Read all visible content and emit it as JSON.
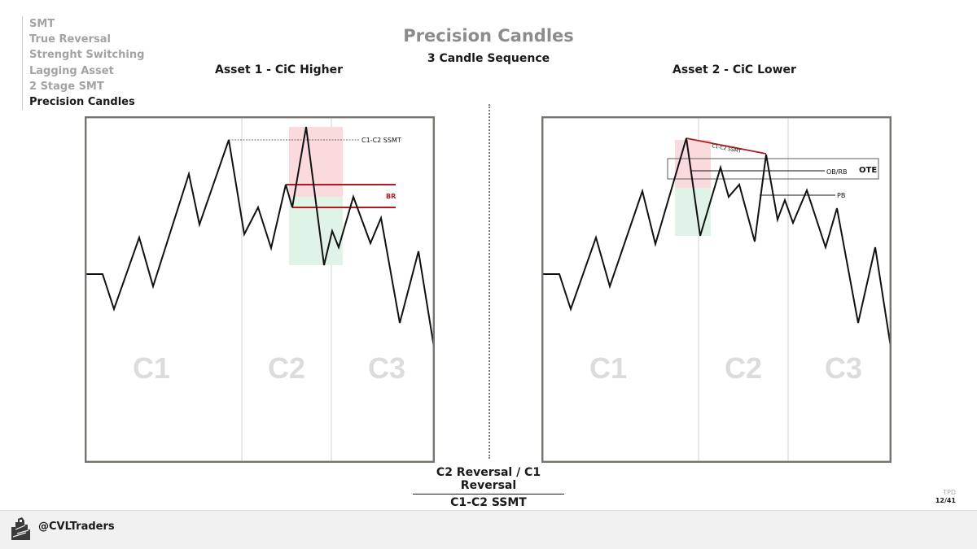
{
  "nav": {
    "items": [
      {
        "label": "SMT",
        "active": false
      },
      {
        "label": "True Reversal",
        "active": false
      },
      {
        "label": "Strenght Switching",
        "active": false
      },
      {
        "label": "Lagging Asset",
        "active": false
      },
      {
        "label": "2 Stage SMT",
        "active": false
      },
      {
        "label": "Precision Candles",
        "active": true
      }
    ]
  },
  "header": {
    "title": "Precision Candles",
    "subtitle": "3 Candle Sequence"
  },
  "assets": [
    {
      "title": "Asset 1 - CiC Higher",
      "candle_labels": [
        "C1",
        "C2",
        "C3"
      ],
      "annotations": {
        "ssmt": "C1-C2 SSMT",
        "br": "BR"
      }
    },
    {
      "title": "Asset 2 - CiC Lower",
      "candle_labels": [
        "C1",
        "C2",
        "C3"
      ],
      "annotations": {
        "ssmt": "C1-C2 SSMT",
        "ob": "OB/RB",
        "pb": "PB",
        "ote": "OTE"
      }
    }
  ],
  "bottom": {
    "line1": "C2 Reversal / C1 Reversal",
    "line2": "C1-C2 SSMT"
  },
  "page": {
    "brand": "TPD",
    "number": "12/41"
  },
  "footer": {
    "handle": "@CVLTraders"
  },
  "colors": {
    "frame": "#77746d",
    "candle_label": "#dcdcdc",
    "zone_red": "#fadadd",
    "zone_green": "#dff4e6",
    "br_line": "#b01b1f",
    "price": "#111111"
  }
}
